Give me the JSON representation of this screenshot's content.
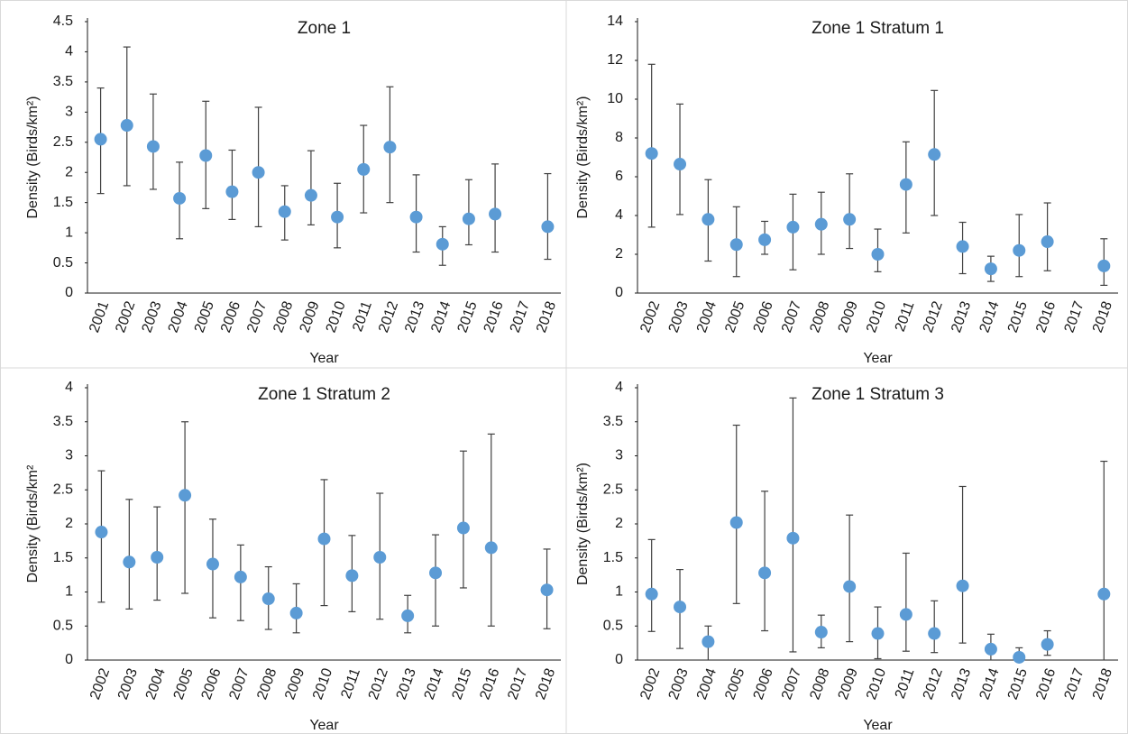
{
  "chart_data": [
    {
      "type": "scatter",
      "title": "Zone 1",
      "x_label": "Year",
      "y_label": "Density (Birds/km²)",
      "color": "#5b9bd5",
      "errorbar_color": "#404040",
      "categories": [
        "2001",
        "2002",
        "2003",
        "2004",
        "2005",
        "2006",
        "2007",
        "2008",
        "2009",
        "2010",
        "2011",
        "2012",
        "2013",
        "2014",
        "2015",
        "2016",
        "2017",
        "2018"
      ],
      "values": [
        2.55,
        2.78,
        2.43,
        1.57,
        2.28,
        1.68,
        2.0,
        1.35,
        1.62,
        1.26,
        2.05,
        2.42,
        1.26,
        0.81,
        1.23,
        1.31,
        null,
        1.1
      ],
      "lower": [
        1.65,
        1.78,
        1.72,
        0.9,
        1.4,
        1.22,
        1.1,
        0.88,
        1.13,
        0.75,
        1.33,
        1.5,
        0.68,
        0.46,
        0.8,
        0.68,
        null,
        0.56
      ],
      "upper": [
        3.4,
        4.08,
        3.3,
        2.17,
        3.18,
        2.37,
        3.08,
        1.78,
        2.36,
        1.82,
        2.78,
        3.42,
        1.96,
        1.1,
        1.88,
        2.14,
        null,
        1.98
      ],
      "ylim": [
        0,
        4.5
      ],
      "yticks": [
        0,
        0.5,
        1,
        1.5,
        2,
        2.5,
        3,
        3.5,
        4,
        4.5
      ]
    },
    {
      "type": "scatter",
      "title": "Zone 1 Stratum 1",
      "x_label": "Year",
      "y_label": "Density (Birds/km²)",
      "color": "#5b9bd5",
      "errorbar_color": "#404040",
      "categories": [
        "2002",
        "2003",
        "2004",
        "2005",
        "2006",
        "2007",
        "2008",
        "2009",
        "2010",
        "2011",
        "2012",
        "2013",
        "2014",
        "2015",
        "2016",
        "2017",
        "2018"
      ],
      "values": [
        7.2,
        6.65,
        3.8,
        2.5,
        2.75,
        3.4,
        3.55,
        3.8,
        2.0,
        5.6,
        7.15,
        2.4,
        1.25,
        2.2,
        2.65,
        null,
        1.4
      ],
      "lower": [
        3.4,
        4.05,
        1.65,
        0.85,
        2.0,
        1.2,
        2.0,
        2.3,
        1.1,
        3.1,
        4.0,
        1.0,
        0.6,
        0.85,
        1.15,
        null,
        0.4
      ],
      "upper": [
        11.8,
        9.75,
        5.85,
        4.45,
        3.7,
        5.1,
        5.2,
        6.15,
        3.3,
        7.8,
        10.45,
        3.65,
        1.9,
        4.05,
        4.65,
        null,
        2.8
      ],
      "ylim": [
        0,
        14
      ],
      "yticks": [
        0,
        2,
        4,
        6,
        8,
        10,
        12,
        14
      ]
    },
    {
      "type": "scatter",
      "title": "Zone 1 Stratum 2",
      "x_label": "Year",
      "y_label": "Density (Birds/km²",
      "color": "#5b9bd5",
      "errorbar_color": "#404040",
      "categories": [
        "2002",
        "2003",
        "2004",
        "2005",
        "2006",
        "2007",
        "2008",
        "2009",
        "2010",
        "2011",
        "2012",
        "2013",
        "2014",
        "2015",
        "2016",
        "2017",
        "2018"
      ],
      "values": [
        1.88,
        1.44,
        1.51,
        2.42,
        1.41,
        1.22,
        0.9,
        0.69,
        1.78,
        1.24,
        1.51,
        0.65,
        1.28,
        1.94,
        1.65,
        null,
        1.03
      ],
      "lower": [
        0.85,
        0.75,
        0.88,
        0.98,
        0.62,
        0.58,
        0.45,
        0.4,
        0.8,
        0.71,
        0.6,
        0.4,
        0.5,
        1.06,
        0.5,
        null,
        0.46
      ],
      "upper": [
        2.78,
        2.36,
        2.25,
        3.5,
        2.07,
        1.69,
        1.37,
        1.12,
        2.65,
        1.83,
        2.45,
        0.95,
        1.84,
        3.07,
        3.32,
        null,
        1.63
      ],
      "ylim": [
        0,
        4
      ],
      "yticks": [
        0,
        0.5,
        1,
        1.5,
        2,
        2.5,
        3,
        3.5,
        4
      ]
    },
    {
      "type": "scatter",
      "title": "Zone 1 Stratum 3",
      "x_label": "Year",
      "y_label": "Density (Birds/km²)",
      "color": "#5b9bd5",
      "errorbar_color": "#404040",
      "categories": [
        "2002",
        "2003",
        "2004",
        "2005",
        "2006",
        "2007",
        "2008",
        "2009",
        "2010",
        "2011",
        "2012",
        "2013",
        "2014",
        "2015",
        "2016",
        "2017",
        "2018"
      ],
      "values": [
        0.97,
        0.78,
        0.27,
        2.02,
        1.28,
        1.79,
        0.41,
        1.08,
        0.39,
        0.67,
        0.39,
        1.09,
        0.16,
        0.04,
        0.23,
        null,
        0.97
      ],
      "lower": [
        0.42,
        0.17,
        0,
        0.83,
        0.43,
        0.12,
        0.18,
        0.27,
        0.02,
        0.13,
        0.11,
        0.25,
        0,
        0,
        0.07,
        null,
        0
      ],
      "upper": [
        1.77,
        1.33,
        0.5,
        3.45,
        2.48,
        3.85,
        0.66,
        2.13,
        0.78,
        1.57,
        0.87,
        2.55,
        0.38,
        0.18,
        0.43,
        null,
        2.92
      ],
      "ylim": [
        0,
        4
      ],
      "yticks": [
        0,
        0.5,
        1,
        1.5,
        2,
        2.5,
        3,
        3.5,
        4
      ]
    }
  ]
}
